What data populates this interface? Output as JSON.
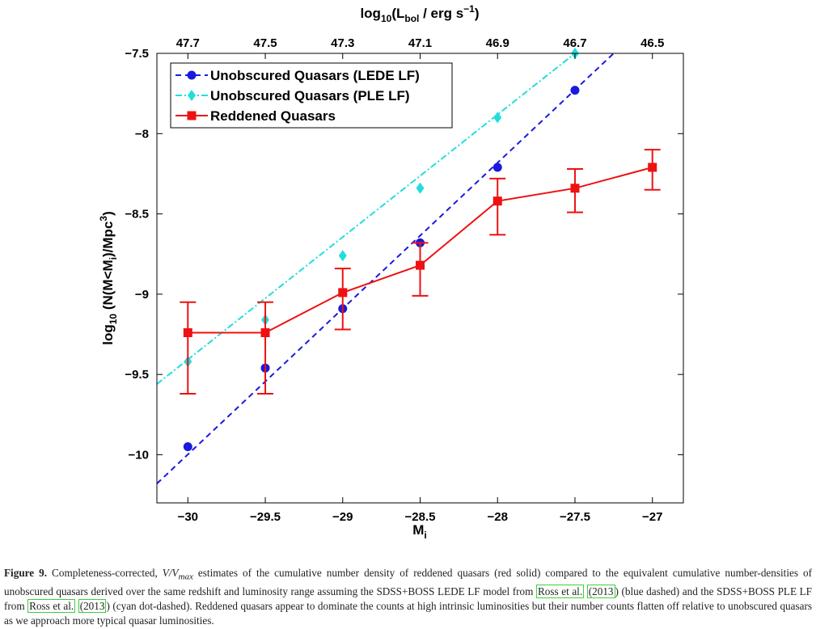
{
  "chart_data": {
    "type": "line",
    "xlabel": "M",
    "xlabel_sub": "i",
    "ylabel": "log",
    "ylabel_sub": "10",
    "ylabel_rest": " (N(M<M",
    "ylabel_sub2": "i",
    "ylabel_rest2": ")/Mpc",
    "ylabel_sup": "3",
    "ylabel_end": ")",
    "top_xlabel": "log",
    "top_xlabel_sub": "10",
    "top_xlabel_rest": "(L",
    "top_xlabel_sub2": "bol",
    "top_xlabel_rest2": " / erg s",
    "top_xlabel_sup": "−1",
    "top_xlabel_end": ")",
    "xlim": [
      -30.2,
      -26.8
    ],
    "ylim": [
      -10.3,
      -7.5
    ],
    "x_ticks": [
      -30,
      -29.5,
      -29,
      -28.5,
      -28,
      -27.5,
      -27
    ],
    "x_tick_labels": [
      "−30",
      "−29.5",
      "−29",
      "−28.5",
      "−28",
      "−27.5",
      "−27"
    ],
    "y_ticks": [
      -7.5,
      -8,
      -8.5,
      -9,
      -9.5,
      -10
    ],
    "y_tick_labels": [
      "−7.5",
      "−8",
      "−8.5",
      "−9",
      "−9.5",
      "−10"
    ],
    "top_x_ticks": [
      -30,
      -29.5,
      -29,
      -28.5,
      -28,
      -27.5,
      -27
    ],
    "top_x_tick_labels": [
      "47.7",
      "47.5",
      "47.3",
      "47.1",
      "46.9",
      "46.7",
      "46.5"
    ],
    "grid": false,
    "legend_position": "top-left",
    "series": [
      {
        "name": "Unobscured Quasars (LEDE LF)",
        "color": "#1a1adc",
        "line_style": "dashed",
        "marker": "circle",
        "x": [
          -30,
          -29.5,
          -29,
          -28.5,
          -28,
          -27.5
        ],
        "y": [
          -9.95,
          -9.46,
          -9.09,
          -8.68,
          -8.21,
          -7.73
        ],
        "line_x": [
          -30.2,
          -27.25
        ],
        "line_y": [
          -10.18,
          -7.5
        ]
      },
      {
        "name": "Unobscured Quasars (PLE LF)",
        "color": "#22dddd",
        "line_style": "dash-dot",
        "marker": "diamond",
        "x": [
          -30,
          -29.5,
          -29,
          -28.5,
          -28,
          -27.5
        ],
        "y": [
          -9.42,
          -9.16,
          -8.76,
          -8.34,
          -7.9,
          -7.5
        ],
        "line_x": [
          -30.2,
          -27.5
        ],
        "line_y": [
          -9.56,
          -7.5
        ]
      },
      {
        "name": "Reddened Quasars",
        "color": "#ee1111",
        "line_style": "solid",
        "marker": "square",
        "x": [
          -30,
          -29.5,
          -29,
          -28.5,
          -28,
          -27.5,
          -27
        ],
        "y": [
          -9.24,
          -9.24,
          -8.99,
          -8.82,
          -8.42,
          -8.34,
          -8.21
        ],
        "err_low": [
          -9.62,
          -9.62,
          -9.22,
          -9.01,
          -8.63,
          -8.49,
          -8.35
        ],
        "err_high": [
          -9.05,
          -9.05,
          -8.84,
          -8.68,
          -8.28,
          -8.22,
          -8.1
        ]
      }
    ]
  },
  "caption": {
    "label": "Figure 9.",
    "t1": " Completeness-corrected, ",
    "math": "V/V",
    "math_sub": "max",
    "t2": " estimates of the cumulative number density of reddened quasars (red solid) compared to the equivalent cumulative number-densities of unobscured quasars derived over the same redshift and luminosity range assuming the SDSS+BOSS LEDE LF model from ",
    "cite1": "Ross et al.",
    "t3": " ",
    "cite1_year": "(2013",
    "t4": ") (blue dashed) and the SDSS+BOSS PLE LF from ",
    "cite2": "Ross et al.",
    "t5": " ",
    "cite2_year": "(2013",
    "t6": ") (cyan dot-dashed). Reddened quasars appear to dominate the counts at high intrinsic luminosities but their number counts flatten off relative to unobscured quasars as we approach more typical quasar luminosities."
  }
}
